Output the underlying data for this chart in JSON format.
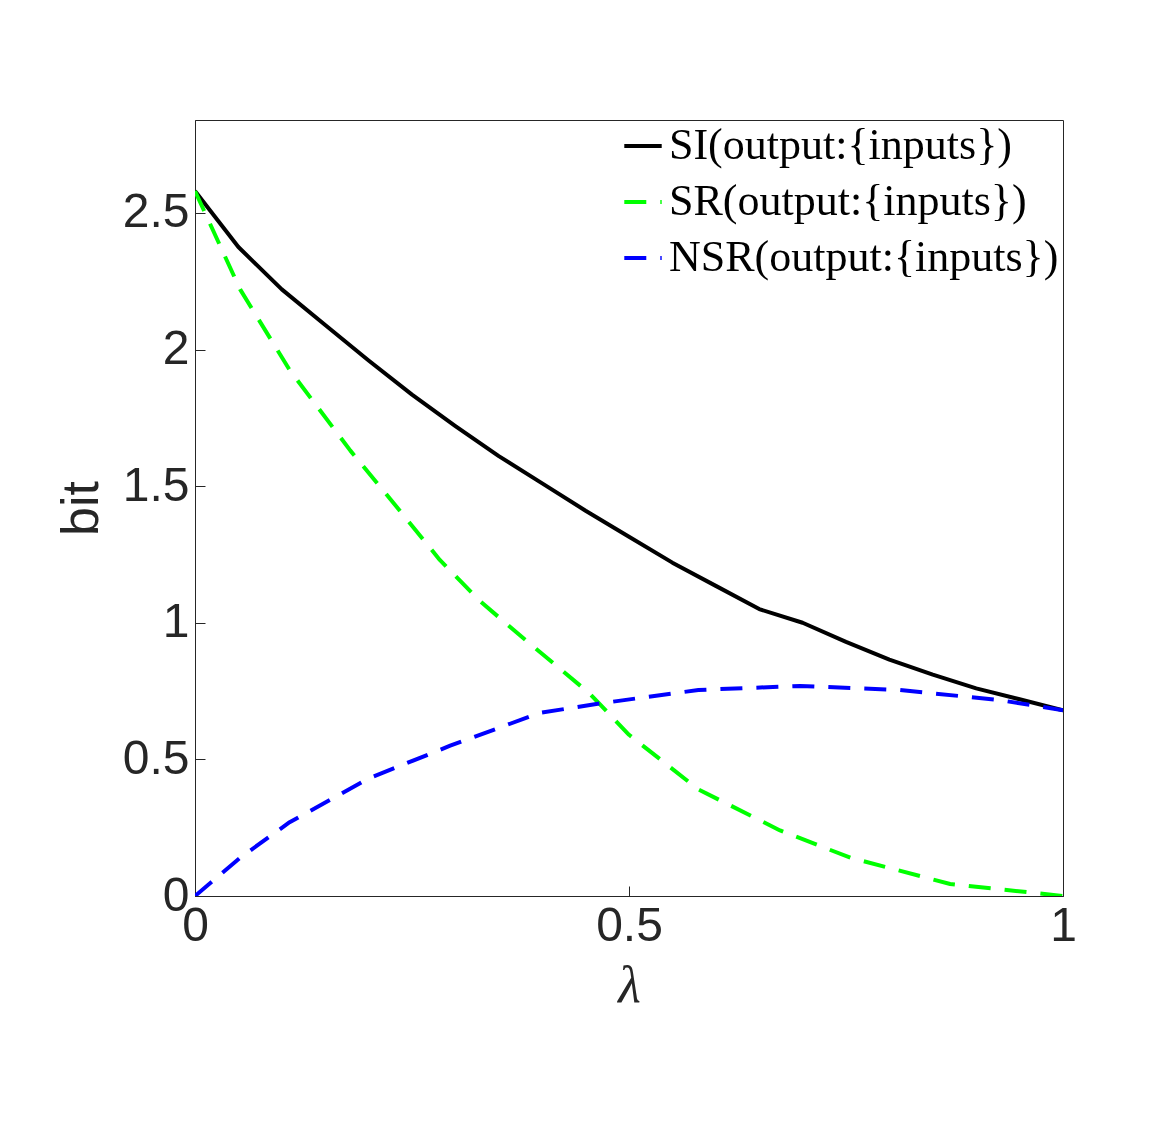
{
  "chart_data": {
    "type": "line",
    "xlabel": "λ",
    "ylabel": "bit",
    "xlim": [
      0,
      1
    ],
    "ylim": [
      0,
      2.84
    ],
    "xticks": [
      0,
      0.5,
      1
    ],
    "yticks": [
      0,
      0.5,
      1,
      1.5,
      2,
      2.5
    ],
    "grid": false,
    "legend": "top right",
    "series": [
      {
        "name": "SI(output:{inputs})",
        "color": "#000000",
        "line_style": "solid",
        "x": [
          0,
          0.05,
          0.1,
          0.15,
          0.2,
          0.25,
          0.3,
          0.35,
          0.4,
          0.45,
          0.5,
          0.55,
          0.6,
          0.65,
          0.7,
          0.75,
          0.8,
          0.85,
          0.9,
          0.95,
          1
        ],
        "values": [
          2.58,
          2.375,
          2.22,
          2.09,
          1.96,
          1.835,
          1.72,
          1.61,
          1.51,
          1.41,
          1.315,
          1.22,
          1.135,
          1.05,
          1.0,
          0.93,
          0.865,
          0.81,
          0.76,
          0.72,
          0.68
        ]
      },
      {
        "name": "SR(output:{inputs})",
        "color": "#00ff00",
        "line_style": "dashed",
        "x": [
          0,
          0.052,
          0.109,
          0.179,
          0.236,
          0.282,
          0.328,
          0.374,
          0.455,
          0.5,
          0.58,
          0.674,
          0.755,
          0.87,
          1
        ],
        "values": [
          2.58,
          2.22,
          1.925,
          1.63,
          1.41,
          1.23,
          1.08,
          0.955,
          0.74,
          0.59,
          0.39,
          0.24,
          0.14,
          0.044,
          0
        ]
      },
      {
        "name": "NSR(output:{inputs})",
        "color": "#0000ff",
        "line_style": "dashed",
        "x": [
          0,
          0.052,
          0.109,
          0.2,
          0.294,
          0.397,
          0.467,
          0.58,
          0.697,
          0.812,
          0.927,
          1
        ],
        "values": [
          0,
          0.14,
          0.27,
          0.43,
          0.55,
          0.67,
          0.705,
          0.754,
          0.769,
          0.754,
          0.717,
          0.68
        ]
      }
    ]
  }
}
